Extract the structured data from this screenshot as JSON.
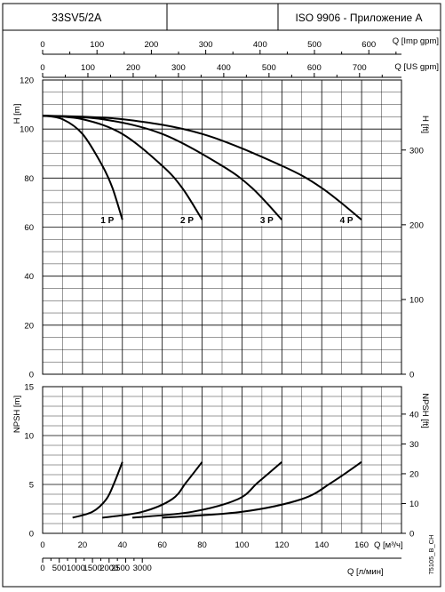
{
  "header": {
    "model": "33SV5/2A",
    "middle": "",
    "standard": "ISO 9906 - Приложение A"
  },
  "doc_code": "75105_B_CH",
  "chart_data": [
    {
      "type": "line",
      "panel": "head",
      "ylabel": "H [m]",
      "ylabel_right": "H [ft]",
      "ylim": [
        0,
        120
      ],
      "y_ticks": [
        0,
        20,
        40,
        60,
        80,
        100,
        120
      ],
      "y_ticks_ft": [
        0,
        100,
        200,
        300
      ],
      "xlabel_top_imp": "Q [Imp gpm]",
      "x_ticks_imp": [
        0,
        100,
        200,
        300,
        400,
        500,
        600
      ],
      "xlabel_top_us": "Q [US gpm]",
      "x_ticks_us": [
        0,
        100,
        200,
        300,
        400,
        500,
        600,
        700
      ],
      "x_unit": "m³/h",
      "xlim": [
        0,
        180
      ],
      "grid": true,
      "series": [
        {
          "name": "1 P",
          "x": [
            0,
            10,
            20,
            30,
            35,
            40
          ],
          "y": [
            105.5,
            104,
            98,
            85,
            76,
            63
          ]
        },
        {
          "name": "2 P",
          "x": [
            0,
            20,
            40,
            60,
            70,
            80
          ],
          "y": [
            105.5,
            104,
            98,
            85,
            76,
            63
          ]
        },
        {
          "name": "3 P",
          "x": [
            0,
            30,
            60,
            90,
            105,
            120
          ],
          "y": [
            105.5,
            104,
            98,
            85,
            76,
            63
          ]
        },
        {
          "name": "4 P",
          "x": [
            0,
            40,
            80,
            120,
            140,
            160
          ],
          "y": [
            105.5,
            104,
            98,
            85,
            76,
            63
          ]
        }
      ]
    },
    {
      "type": "line",
      "panel": "npsh",
      "ylabel": "NPSH [m]",
      "ylabel_right": "NPSH [ft]",
      "ylim": [
        0,
        15
      ],
      "y_ticks": [
        0,
        5,
        10,
        15
      ],
      "y_ticks_ft": [
        0,
        10,
        20,
        30,
        40
      ],
      "xlabel": "Q [м³/ч]",
      "x_ticks": [
        0,
        20,
        40,
        60,
        80,
        100,
        120,
        140,
        160
      ],
      "xlabel_lpm": "Q [л/мин]",
      "x_ticks_lpm": [
        0,
        500,
        1000,
        1500,
        2000,
        2500,
        3000
      ],
      "xlim": [
        0,
        180
      ],
      "grid": true,
      "series": [
        {
          "name": "1 P",
          "x": [
            15,
            25,
            32,
            36,
            40
          ],
          "y": [
            1.6,
            2.2,
            3.5,
            5.2,
            7.3
          ]
        },
        {
          "name": "2 P",
          "x": [
            30,
            50,
            65,
            72,
            80
          ],
          "y": [
            1.6,
            2.2,
            3.5,
            5.2,
            7.3
          ]
        },
        {
          "name": "3 P",
          "x": [
            45,
            75,
            98,
            108,
            120
          ],
          "y": [
            1.6,
            2.2,
            3.5,
            5.2,
            7.3
          ]
        },
        {
          "name": "4 P",
          "x": [
            60,
            100,
            130,
            145,
            160
          ],
          "y": [
            1.6,
            2.2,
            3.5,
            5.2,
            7.3
          ]
        }
      ]
    }
  ]
}
